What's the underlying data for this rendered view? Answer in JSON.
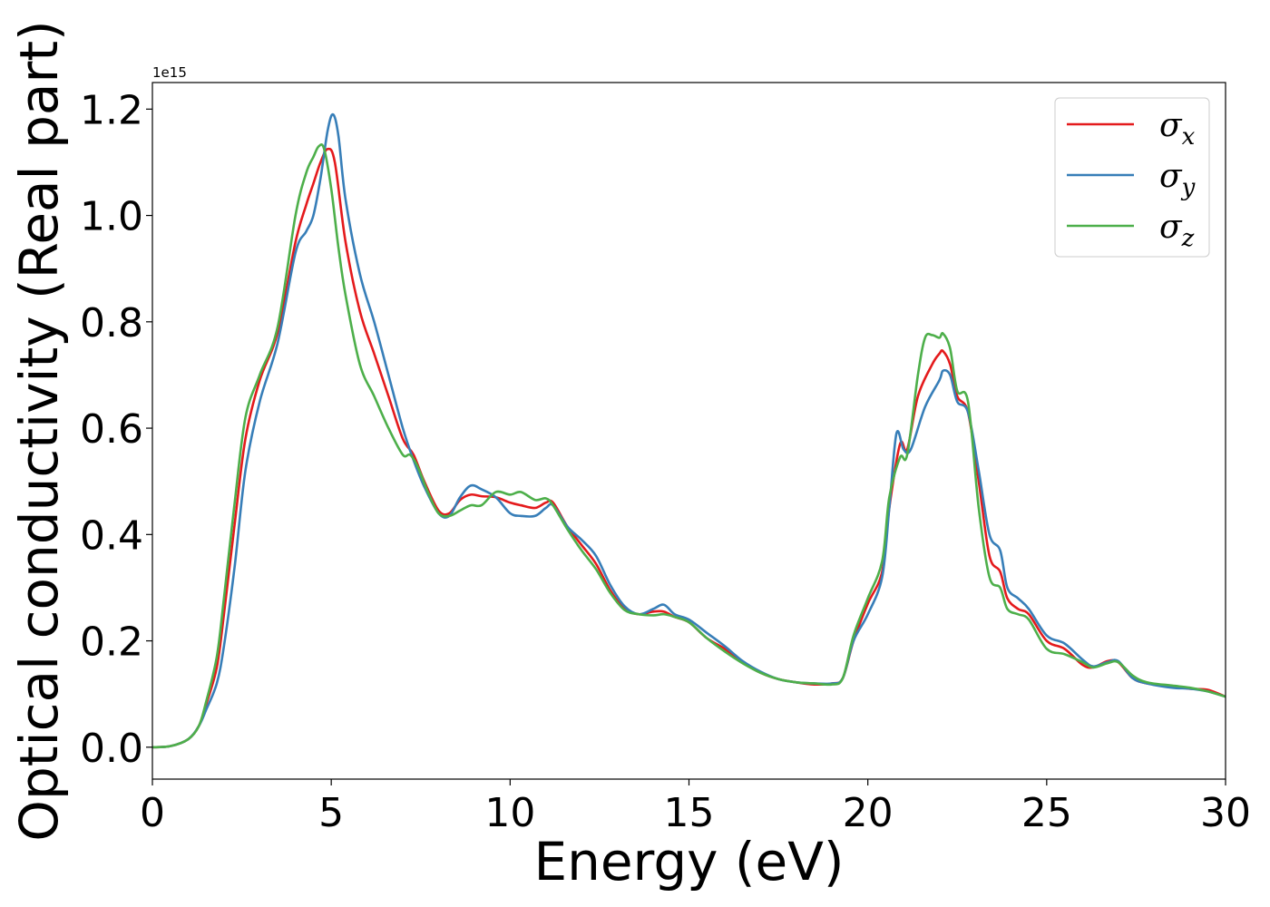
{
  "chart_data": {
    "type": "line",
    "title": "",
    "xlabel": "Energy (eV)",
    "ylabel": "Optical conductivity (Real part)",
    "y_multiplier_label": "1e15",
    "xlim": [
      0,
      30
    ],
    "ylim": [
      -0.06,
      1.25
    ],
    "x_ticks": [
      0,
      5,
      10,
      15,
      20,
      25,
      30
    ],
    "x_tick_labels": [
      "0",
      "5",
      "10",
      "15",
      "20",
      "25",
      "30"
    ],
    "y_ticks": [
      0.0,
      0.2,
      0.4,
      0.6,
      0.8,
      1.0,
      1.2
    ],
    "y_tick_labels": [
      "0.0",
      "0.2",
      "0.4",
      "0.6",
      "0.8",
      "1.0",
      "1.2"
    ],
    "grid": false,
    "legend_position": "top-right",
    "series": [
      {
        "name": "σx",
        "symbol": "σ",
        "subscript": "x",
        "color": "#e41a1c",
        "x": [
          0,
          0.5,
          1,
          1.3,
          1.5,
          1.8,
          2,
          2.3,
          2.6,
          3,
          3.5,
          4,
          4.3,
          4.5,
          4.7,
          4.9,
          5.1,
          5.4,
          5.8,
          6.2,
          6.6,
          7,
          7.3,
          7.6,
          8,
          8.3,
          8.6,
          8.9,
          9.2,
          9.6,
          10,
          10.3,
          10.7,
          11,
          11.2,
          11.6,
          12,
          12.4,
          12.8,
          13.2,
          13.6,
          14,
          14.3,
          14.6,
          15,
          15.5,
          16,
          16.5,
          17,
          17.5,
          18,
          18.5,
          19,
          19.3,
          19.6,
          20,
          20.4,
          20.6,
          20.9,
          21.1,
          21.4,
          21.8,
          22,
          22.1,
          22.3,
          22.5,
          22.8,
          23.1,
          23.4,
          23.7,
          23.9,
          24.2,
          24.5,
          25,
          25.5,
          26,
          26.3,
          26.7,
          27,
          27.4,
          27.8,
          28.5,
          29,
          29.5,
          30
        ],
        "values": [
          0,
          0.002,
          0.015,
          0.04,
          0.08,
          0.15,
          0.25,
          0.42,
          0.58,
          0.69,
          0.78,
          0.95,
          1.02,
          1.06,
          1.1,
          1.125,
          1.1,
          0.95,
          0.82,
          0.74,
          0.66,
          0.58,
          0.55,
          0.5,
          0.445,
          0.44,
          0.465,
          0.475,
          0.472,
          0.47,
          0.46,
          0.455,
          0.45,
          0.46,
          0.46,
          0.415,
          0.38,
          0.345,
          0.295,
          0.26,
          0.25,
          0.255,
          0.255,
          0.245,
          0.235,
          0.205,
          0.185,
          0.16,
          0.14,
          0.128,
          0.122,
          0.118,
          0.12,
          0.13,
          0.2,
          0.27,
          0.33,
          0.45,
          0.57,
          0.56,
          0.66,
          0.72,
          0.74,
          0.745,
          0.72,
          0.66,
          0.63,
          0.5,
          0.36,
          0.33,
          0.28,
          0.26,
          0.25,
          0.2,
          0.185,
          0.155,
          0.15,
          0.162,
          0.16,
          0.13,
          0.12,
          0.115,
          0.11,
          0.108,
          0.095
        ]
      },
      {
        "name": "σy",
        "symbol": "σ",
        "subscript": "y",
        "color": "#377eb8",
        "x": [
          0,
          0.5,
          1,
          1.3,
          1.5,
          1.8,
          2,
          2.3,
          2.6,
          3,
          3.5,
          4,
          4.3,
          4.5,
          4.7,
          4.9,
          5.05,
          5.2,
          5.4,
          5.8,
          6.2,
          6.6,
          7,
          7.3,
          7.6,
          8,
          8.3,
          8.6,
          8.9,
          9.2,
          9.6,
          10,
          10.3,
          10.7,
          11,
          11.2,
          11.6,
          12,
          12.4,
          12.8,
          13.2,
          13.6,
          14,
          14.3,
          14.6,
          15,
          15.5,
          16,
          16.5,
          17,
          17.5,
          18,
          18.5,
          19,
          19.3,
          19.6,
          20,
          20.4,
          20.6,
          20.8,
          21,
          21.2,
          21.6,
          22,
          22.1,
          22.3,
          22.5,
          22.8,
          23.1,
          23.4,
          23.7,
          23.9,
          24.2,
          24.5,
          25,
          25.5,
          26,
          26.3,
          26.7,
          27,
          27.4,
          27.8,
          28.5,
          29,
          29.5,
          30
        ],
        "values": [
          0,
          0.002,
          0.015,
          0.04,
          0.07,
          0.12,
          0.19,
          0.34,
          0.52,
          0.65,
          0.76,
          0.93,
          0.97,
          1.0,
          1.07,
          1.16,
          1.19,
          1.15,
          1.03,
          0.89,
          0.8,
          0.7,
          0.6,
          0.54,
          0.49,
          0.44,
          0.435,
          0.47,
          0.492,
          0.485,
          0.47,
          0.44,
          0.435,
          0.435,
          0.45,
          0.455,
          0.415,
          0.39,
          0.36,
          0.305,
          0.265,
          0.25,
          0.26,
          0.268,
          0.25,
          0.24,
          0.215,
          0.19,
          0.162,
          0.142,
          0.128,
          0.122,
          0.12,
          0.12,
          0.13,
          0.2,
          0.25,
          0.32,
          0.45,
          0.59,
          0.56,
          0.56,
          0.64,
          0.69,
          0.708,
          0.7,
          0.65,
          0.63,
          0.52,
          0.4,
          0.37,
          0.3,
          0.28,
          0.26,
          0.21,
          0.195,
          0.165,
          0.152,
          0.16,
          0.162,
          0.13,
          0.12,
          0.112,
          0.11,
          0.105,
          0.095
        ]
      },
      {
        "name": "σz",
        "symbol": "σ",
        "subscript": "z",
        "color": "#4daf4a",
        "x": [
          0,
          0.5,
          1,
          1.3,
          1.5,
          1.8,
          2,
          2.3,
          2.6,
          3,
          3.5,
          4,
          4.3,
          4.5,
          4.65,
          4.8,
          5,
          5.2,
          5.4,
          5.8,
          6.2,
          6.6,
          7,
          7.2,
          7.4,
          7.7,
          8,
          8.3,
          8.6,
          8.9,
          9.2,
          9.6,
          10,
          10.3,
          10.7,
          11,
          11.2,
          11.6,
          12,
          12.4,
          12.8,
          13.2,
          13.6,
          14,
          14.3,
          14.6,
          15,
          15.5,
          16,
          16.5,
          17,
          17.5,
          18,
          18.5,
          19,
          19.3,
          19.6,
          20,
          20.4,
          20.6,
          20.9,
          21.1,
          21.4,
          21.6,
          21.8,
          22,
          22.1,
          22.3,
          22.5,
          22.8,
          23.1,
          23.4,
          23.7,
          23.9,
          24.2,
          24.5,
          25,
          25.5,
          26,
          26.3,
          26.7,
          27,
          27.4,
          27.8,
          28.5,
          29,
          29.5,
          30
        ],
        "values": [
          0,
          0.002,
          0.015,
          0.04,
          0.085,
          0.17,
          0.28,
          0.46,
          0.62,
          0.7,
          0.79,
          1.0,
          1.08,
          1.11,
          1.13,
          1.125,
          1.05,
          0.94,
          0.85,
          0.72,
          0.66,
          0.6,
          0.55,
          0.55,
          0.53,
          0.48,
          0.44,
          0.435,
          0.445,
          0.455,
          0.455,
          0.48,
          0.475,
          0.48,
          0.465,
          0.468,
          0.455,
          0.41,
          0.37,
          0.335,
          0.29,
          0.258,
          0.25,
          0.248,
          0.25,
          0.245,
          0.235,
          0.205,
          0.18,
          0.158,
          0.14,
          0.128,
          0.122,
          0.12,
          0.118,
          0.13,
          0.21,
          0.28,
          0.35,
          0.47,
          0.545,
          0.55,
          0.7,
          0.77,
          0.775,
          0.77,
          0.778,
          0.75,
          0.67,
          0.65,
          0.45,
          0.32,
          0.3,
          0.26,
          0.25,
          0.24,
          0.185,
          0.175,
          0.16,
          0.15,
          0.158,
          0.16,
          0.135,
          0.122,
          0.116,
          0.112,
          0.105,
          0.095
        ]
      }
    ]
  }
}
